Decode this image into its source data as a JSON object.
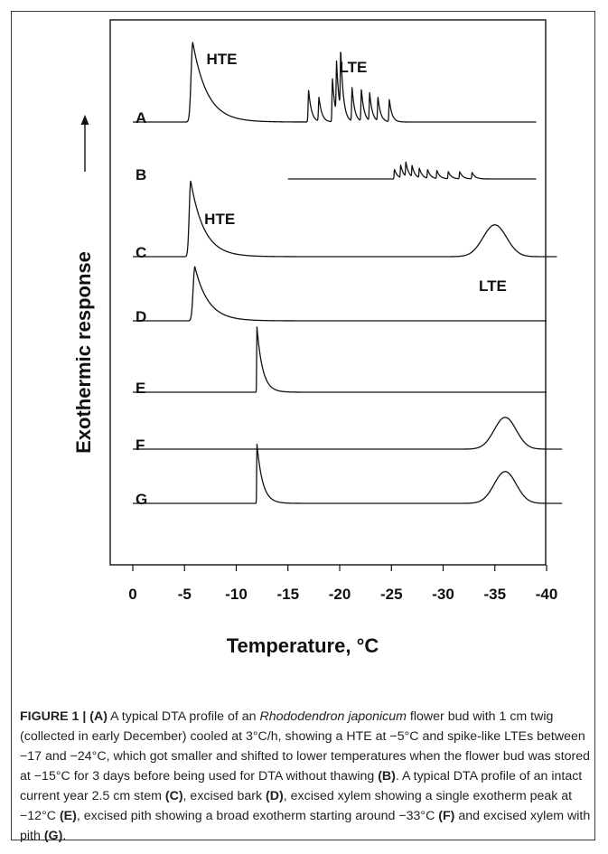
{
  "chart_data": {
    "type": "line",
    "title": "",
    "xlabel": "Temperature, °C",
    "ylabel": "Exothermic response",
    "xlim": [
      0,
      -40
    ],
    "x_ticks": [
      "0",
      "-5",
      "-10",
      "-15",
      "-20",
      "-25",
      "-30",
      "-35",
      "-40"
    ],
    "y_units": "relative (qualitative)",
    "series": [
      {
        "name": "A",
        "range": [
          0,
          -39
        ],
        "peaks": [
          {
            "x": -5.8,
            "h": 1.0,
            "width": 0.4,
            "decay": 1.4
          },
          {
            "x": -17.0,
            "h": 0.4,
            "width": 0.12,
            "decay": 0.28
          },
          {
            "x": -18.0,
            "h": 0.3,
            "width": 0.12,
            "decay": 0.28
          },
          {
            "x": -19.3,
            "h": 0.55,
            "width": 0.1,
            "decay": 0.26
          },
          {
            "x": -19.7,
            "h": 0.65,
            "width": 0.1,
            "decay": 0.26
          },
          {
            "x": -20.1,
            "h": 0.75,
            "width": 0.1,
            "decay": 0.26
          },
          {
            "x": -21.2,
            "h": 0.42,
            "width": 0.1,
            "decay": 0.26
          },
          {
            "x": -22.1,
            "h": 0.4,
            "width": 0.1,
            "decay": 0.26
          },
          {
            "x": -22.9,
            "h": 0.35,
            "width": 0.1,
            "decay": 0.26
          },
          {
            "x": -23.7,
            "h": 0.3,
            "width": 0.1,
            "decay": 0.26
          },
          {
            "x": -24.8,
            "h": 0.28,
            "width": 0.1,
            "decay": 0.26
          }
        ],
        "labels": [
          {
            "text": "HTE",
            "at_x": -8.6,
            "dy": -64
          },
          {
            "text": "LTE",
            "at_x": -21.3,
            "dy": -55
          }
        ]
      },
      {
        "name": "B",
        "range": [
          -15,
          -39
        ],
        "peaks": [
          {
            "x": -25.3,
            "h": 0.12,
            "width": 0.08,
            "decay": 0.3
          },
          {
            "x": -25.9,
            "h": 0.16,
            "width": 0.08,
            "decay": 0.3
          },
          {
            "x": -26.4,
            "h": 0.18,
            "width": 0.08,
            "decay": 0.3
          },
          {
            "x": -27.0,
            "h": 0.14,
            "width": 0.08,
            "decay": 0.3
          },
          {
            "x": -27.7,
            "h": 0.12,
            "width": 0.08,
            "decay": 0.3
          },
          {
            "x": -28.5,
            "h": 0.11,
            "width": 0.08,
            "decay": 0.3
          },
          {
            "x": -29.4,
            "h": 0.1,
            "width": 0.08,
            "decay": 0.3
          },
          {
            "x": -30.5,
            "h": 0.09,
            "width": 0.08,
            "decay": 0.3
          },
          {
            "x": -31.6,
            "h": 0.09,
            "width": 0.08,
            "decay": 0.3
          },
          {
            "x": -32.8,
            "h": 0.08,
            "width": 0.08,
            "decay": 0.3
          }
        ],
        "labels": []
      },
      {
        "name": "C",
        "range": [
          0,
          -41
        ],
        "peaks": [
          {
            "x": -5.6,
            "h": 0.95,
            "width": 0.35,
            "decay": 1.3
          },
          {
            "x": -35.0,
            "h": 0.4,
            "width": 1.6,
            "decay": 0,
            "shape": "gauss"
          }
        ],
        "labels": [
          {
            "text": "HTE",
            "at_x": -8.4,
            "dy": -36
          },
          {
            "text": "LTE",
            "at_x": -34.8,
            "dy": 38
          }
        ]
      },
      {
        "name": "D",
        "range": [
          0,
          -40
        ],
        "peaks": [
          {
            "x": -6.0,
            "h": 0.68,
            "width": 0.4,
            "decay": 1.3
          }
        ],
        "labels": []
      },
      {
        "name": "E",
        "range": [
          0,
          -40
        ],
        "peaks": [
          {
            "x": -12.0,
            "h": 0.82,
            "width": 0.06,
            "decay": 0.55
          }
        ],
        "labels": []
      },
      {
        "name": "F",
        "range": [
          0,
          -41.5
        ],
        "peaks": [
          {
            "x": -36.0,
            "h": 0.4,
            "width": 1.5,
            "decay": 0,
            "shape": "gauss"
          }
        ],
        "labels": []
      },
      {
        "name": "G",
        "range": [
          0,
          -41.5
        ],
        "peaks": [
          {
            "x": -12.0,
            "h": 0.75,
            "width": 0.06,
            "decay": 0.55
          },
          {
            "x": -36.0,
            "h": 0.4,
            "width": 1.5,
            "decay": 0,
            "shape": "gauss"
          }
        ],
        "labels": []
      }
    ]
  },
  "caption": {
    "figure_label": "FIGURE 1 | ",
    "segments": [
      {
        "t": "(A)",
        "b": true
      },
      {
        "t": " A typical DTA profile of an "
      },
      {
        "t": "Rhododendron japonicum",
        "i": true
      },
      {
        "t": " flower bud with 1 cm twig (collected in early December) cooled at 3°C/h, showing a HTE at −5°C and spike-like LTEs between −17 and −24°C, which got smaller and shifted to lower temperatures when the flower bud was stored at −15°C for 3 days before being used for DTA without thawing "
      },
      {
        "t": "(B)",
        "b": true
      },
      {
        "t": ". A typical DTA profile of an intact current year 2.5 cm stem "
      },
      {
        "t": "(C)",
        "b": true
      },
      {
        "t": ", excised bark "
      },
      {
        "t": "(D)",
        "b": true
      },
      {
        "t": ", excised xylem showing a single exotherm peak at −12°C "
      },
      {
        "t": "(E)",
        "b": true
      },
      {
        "t": ", excised pith showing a broad exotherm starting around −33°C "
      },
      {
        "t": "(F)",
        "b": true
      },
      {
        "t": " and excised xylem with pith "
      },
      {
        "t": "(G)",
        "b": true
      },
      {
        "t": "."
      }
    ]
  }
}
